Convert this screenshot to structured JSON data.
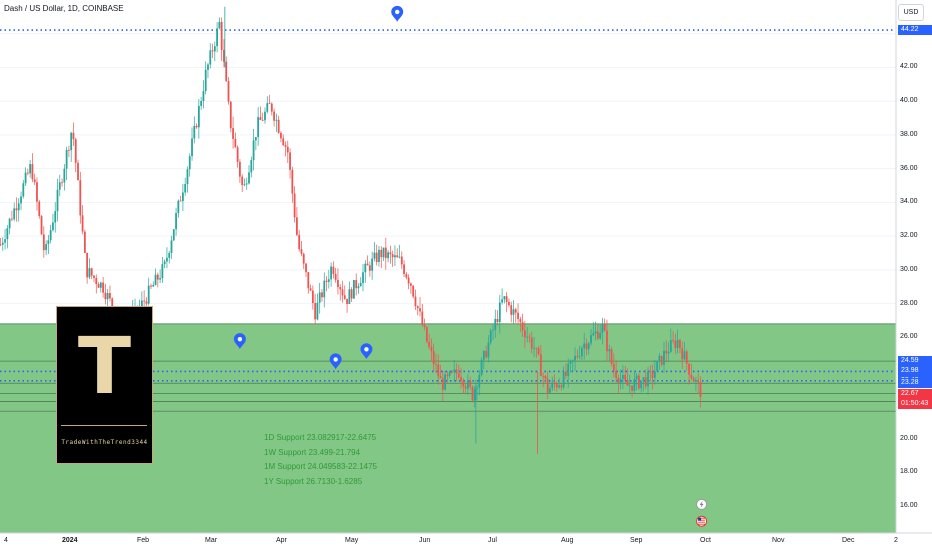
{
  "header": {
    "title": "Dash / US Dollar, 1D, COINBASE",
    "currency": "USD"
  },
  "colors": {
    "up": "#26a69a",
    "down": "#ef5350",
    "zone_fill": "#7bc47f",
    "dotted_line": "#2962ff",
    "price_tag": "#f23645",
    "level_tag": "#2962ff",
    "logo_gold": "#e9d6a9"
  },
  "logo": {
    "letter": "T",
    "text": "TradeWithTheTrend3344"
  },
  "icons": [
    "map-marker-icon",
    "lightning-icon",
    "us-flag-icon"
  ],
  "chart_data": {
    "type": "candlestick",
    "instrument": "Dash / US Dollar",
    "interval": "1D",
    "exchange": "COINBASE",
    "ylim": [
      14.4,
      46.0
    ],
    "price_ticks": [
      16.0,
      18.0,
      20.0,
      22.0,
      24.0,
      26.0,
      28.0,
      30.0,
      32.0,
      34.0,
      36.0,
      38.0,
      40.0,
      42.0,
      44.0
    ],
    "x_ticks": [
      "4",
      "2024",
      "Feb",
      "Mar",
      "Apr",
      "May",
      "Jun",
      "Jul",
      "Aug",
      "Sep",
      "Oct",
      "Nov",
      "Dec",
      "2"
    ],
    "x_months": [
      "Dec",
      "Jan",
      "Feb",
      "Mar",
      "Apr",
      "May",
      "Jun",
      "Jul",
      "Aug",
      "Sep",
      "Oct",
      "Nov",
      "Dec"
    ],
    "path_points": [
      [
        0,
        31.5
      ],
      [
        0.45,
        36.2
      ],
      [
        0.65,
        30.8
      ],
      [
        1.05,
        38.5
      ],
      [
        1.25,
        30.0
      ],
      [
        1.5,
        29.0
      ],
      [
        1.75,
        26.8
      ],
      [
        2.0,
        27.5
      ],
      [
        2.4,
        30.2
      ],
      [
        2.75,
        36.4
      ],
      [
        3.0,
        41.6
      ],
      [
        3.2,
        44.6
      ],
      [
        3.35,
        39.0
      ],
      [
        3.55,
        34.6
      ],
      [
        3.75,
        38.5
      ],
      [
        3.95,
        39.8
      ],
      [
        4.2,
        37.0
      ],
      [
        4.35,
        31.5
      ],
      [
        4.6,
        27.5
      ],
      [
        4.85,
        30.3
      ],
      [
        5.05,
        28.2
      ],
      [
        5.3,
        29.8
      ],
      [
        5.55,
        31.0
      ],
      [
        5.85,
        30.5
      ],
      [
        6.0,
        29.2
      ],
      [
        6.25,
        25.5
      ],
      [
        6.45,
        23.2
      ],
      [
        6.7,
        24.0
      ],
      [
        6.9,
        22.6
      ],
      [
        7.1,
        25.2
      ],
      [
        7.35,
        28.3
      ],
      [
        7.55,
        27.2
      ],
      [
        7.8,
        25.4
      ],
      [
        8.0,
        22.9
      ],
      [
        8.25,
        23.6
      ],
      [
        8.5,
        25.5
      ],
      [
        8.8,
        26.6
      ],
      [
        8.95,
        24.2
      ],
      [
        9.15,
        23.1
      ],
      [
        9.5,
        23.6
      ],
      [
        9.75,
        25.3
      ],
      [
        9.9,
        25.8
      ],
      [
        10.1,
        23.8
      ],
      [
        10.25,
        22.7
      ]
    ],
    "high_low": {
      "high": 45.6,
      "high_month": "Mar",
      "low": 19.1,
      "low_month": "Aug"
    },
    "markers": [
      {
        "month": 5.8,
        "price": 44.7
      },
      {
        "month": 3.5,
        "price": 25.3
      },
      {
        "month": 4.9,
        "price": 24.1
      },
      {
        "month": 5.35,
        "price": 24.7
      }
    ],
    "zones": [
      {
        "from": 21.62,
        "to": 26.8,
        "color": "#7bc47f"
      },
      {
        "from": 14.4,
        "to": 21.62,
        "color": "#7bc47f"
      }
    ],
    "level_lines": [
      {
        "price": 44.22,
        "style": "dotted"
      },
      {
        "price": 24.59,
        "style": "solid"
      },
      {
        "price": 23.98,
        "style": "dotted"
      },
      {
        "price": 23.42,
        "style": "dotted"
      },
      {
        "price": 23.28,
        "style": "solid"
      },
      {
        "price": 22.67,
        "style": "solid"
      },
      {
        "price": 22.2,
        "style": "solid"
      }
    ],
    "price_tags": [
      {
        "price": 44.22,
        "label": "44.22",
        "color": "#2962ff"
      },
      {
        "price": 24.59,
        "label": "24.59",
        "color": "#2962ff"
      },
      {
        "price": 23.98,
        "label": "23.98",
        "color": "#2962ff"
      },
      {
        "price": 23.42,
        "label": "23.42",
        "color": "#2962ff"
      },
      {
        "price": 23.28,
        "label": "23.28",
        "color": "#2962ff"
      },
      {
        "price": 22.67,
        "label": "22.67",
        "color": "#f23645"
      }
    ],
    "countdown": "01:50:43",
    "annotations": [
      "1D Support 23.082917-22.6475",
      "1W Support 23.499-21.794",
      "1M Support 24.049583-22.1475",
      "1Y Support 26.7130-1.6285"
    ]
  }
}
